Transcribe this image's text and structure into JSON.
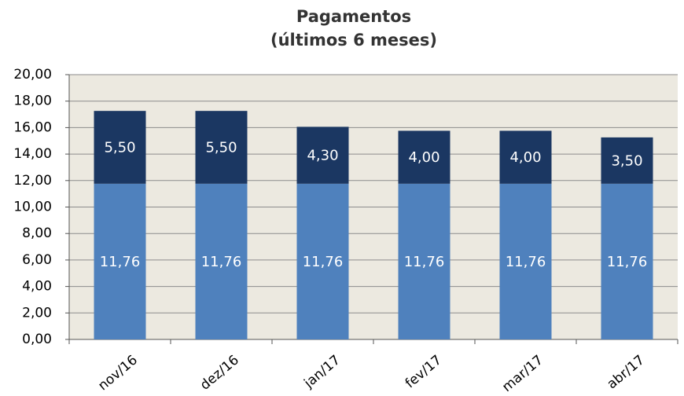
{
  "chart_data": {
    "type": "stacked-bar",
    "title": "Pagamentos",
    "subtitle": "(últimos 6 meses)",
    "categories": [
      "nov/16",
      "dez/16",
      "jan/17",
      "fev/17",
      "mar/17",
      "abr/17"
    ],
    "series": [
      {
        "color": "#4f81bd",
        "values": [
          11.76,
          11.76,
          11.76,
          11.76,
          11.76,
          11.76
        ],
        "value_labels": [
          "11,76",
          "11,76",
          "11,76",
          "11,76",
          "11,76",
          "11,76"
        ]
      },
      {
        "color": "#1b3762",
        "values": [
          5.5,
          5.5,
          4.3,
          4.0,
          4.0,
          3.5
        ],
        "value_labels": [
          "5,50",
          "5,50",
          "4,30",
          "4,00",
          "4,00",
          "3,50"
        ]
      }
    ],
    "ylim": [
      0,
      20
    ],
    "yticks": [
      {
        "value": 0,
        "label": "0,00"
      },
      {
        "value": 2,
        "label": "2,00"
      },
      {
        "value": 4,
        "label": "4,00"
      },
      {
        "value": 6,
        "label": "6,00"
      },
      {
        "value": 8,
        "label": "8,00"
      },
      {
        "value": 10,
        "label": "10,00"
      },
      {
        "value": 12,
        "label": "12,00"
      },
      {
        "value": 14,
        "label": "14,00"
      },
      {
        "value": 16,
        "label": "16,00"
      },
      {
        "value": 18,
        "label": "18,00"
      },
      {
        "value": 20,
        "label": "20,00"
      }
    ],
    "grid": true
  }
}
